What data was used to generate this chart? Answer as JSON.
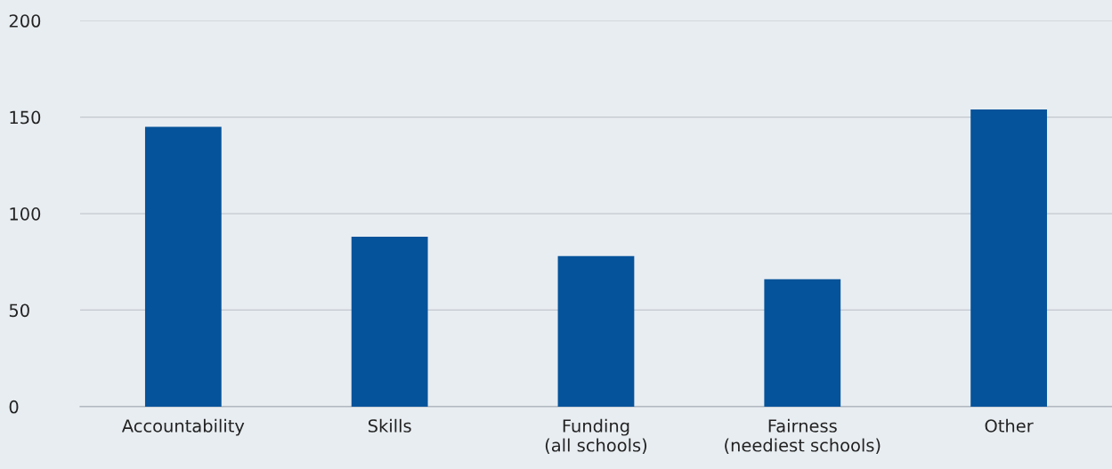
{
  "chart_data": {
    "type": "bar",
    "categories": [
      "Accountability",
      "Skills",
      "Funding\n(all schools)",
      "Fairness\n(neediest schools)",
      "Other"
    ],
    "values": [
      145,
      88,
      78,
      66,
      154
    ],
    "color": "#05539a",
    "ylim": [
      0,
      200
    ],
    "yticks": [
      0,
      50,
      100,
      150,
      200
    ],
    "grid": "y"
  }
}
